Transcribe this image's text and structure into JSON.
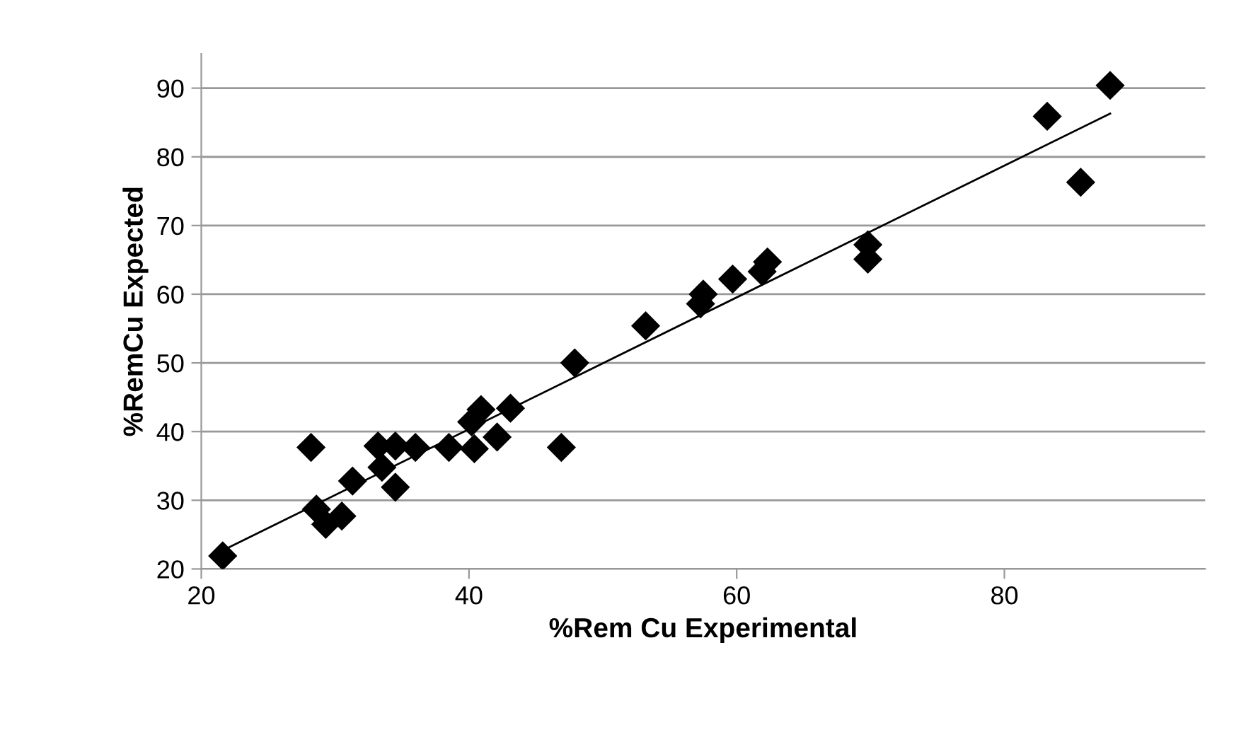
{
  "chart_data": {
    "type": "scatter",
    "xlabel": "%Rem Cu Experimental",
    "ylabel": "%RemCu Expected",
    "xlim": [
      20,
      95
    ],
    "xticks": [
      20,
      40,
      60,
      80
    ],
    "ylim": [
      20,
      95
    ],
    "yticks": [
      20,
      30,
      40,
      50,
      60,
      70,
      80,
      90
    ],
    "grid": "y",
    "legend": false,
    "series": [
      {
        "marker": "diamond",
        "color": "#000000",
        "x": [
          21.6,
          28.2,
          28.6,
          29.3,
          30.5,
          31.3,
          33.2,
          33.5,
          34.5,
          34.5,
          36.0,
          38.5,
          40.4,
          40.2,
          40.9,
          42.1,
          43.1,
          46.9,
          47.9,
          53.2,
          57.3,
          57.5,
          59.7,
          61.9,
          62.3,
          69.8,
          69.8,
          83.2,
          85.7,
          87.9
        ],
        "values": [
          21.9,
          37.7,
          28.7,
          26.5,
          27.7,
          32.8,
          37.9,
          34.8,
          37.9,
          31.9,
          37.7,
          37.7,
          37.5,
          41.4,
          43.2,
          39.2,
          43.4,
          37.7,
          50.0,
          55.4,
          58.6,
          60.0,
          62.2,
          63.3,
          64.7,
          67.2,
          65.1,
          85.9,
          76.3,
          90.4
        ]
      },
      {
        "type": "line",
        "marker": "none",
        "line_style": "solid",
        "color": "#000000",
        "x": [
          21.6,
          87.9
        ],
        "values": [
          22.7,
          86.3
        ]
      }
    ]
  }
}
